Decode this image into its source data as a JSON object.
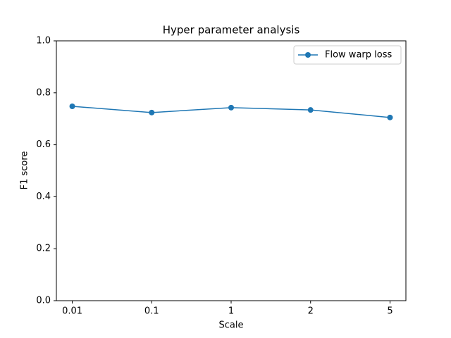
{
  "chart_data": {
    "type": "line",
    "title": "Hyper parameter analysis",
    "x_label": "Scale",
    "y_label": "F1 score",
    "categories": [
      "0.01",
      "0.1",
      "1",
      "2",
      "5"
    ],
    "series": [
      {
        "name": "Flow warp loss",
        "color": "#1f77b4",
        "values": [
          0.748,
          0.724,
          0.743,
          0.734,
          0.705
        ]
      }
    ],
    "ylim": [
      0,
      1
    ],
    "yticks": [
      {
        "value": 0,
        "label": "0.0"
      },
      0.2,
      0.4,
      0.6,
      0.8,
      {
        "value": 1,
        "label": "1.0"
      }
    ],
    "legend": "upper right"
  }
}
